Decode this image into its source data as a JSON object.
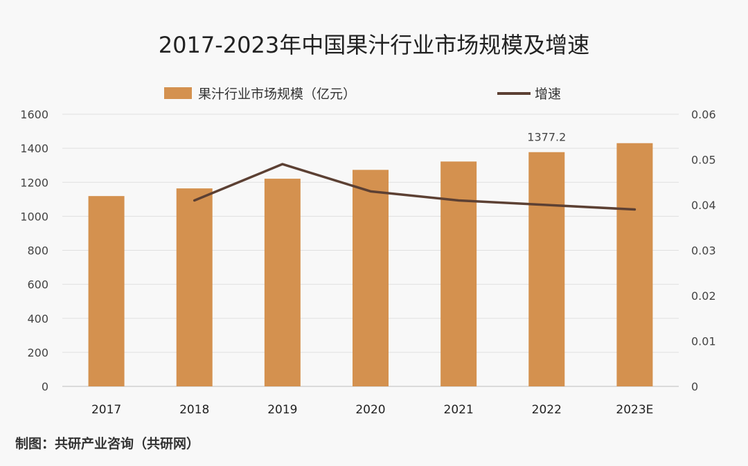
{
  "chart_data": {
    "type": "bar",
    "title": "2017-2023年中国果汁行业市场规模及增速",
    "categories": [
      "2017",
      "2018",
      "2019",
      "2020",
      "2021",
      "2022",
      "2023E"
    ],
    "series": [
      {
        "name": "果汁行业市场规模（亿元）",
        "type": "bar",
        "axis": "left",
        "color": "#d4914f",
        "values": [
          1119,
          1164,
          1221,
          1273,
          1322,
          1377.2,
          1430
        ]
      },
      {
        "name": "增速",
        "type": "line",
        "axis": "right",
        "color": "#5c4033",
        "values": [
          null,
          0.041,
          0.049,
          0.043,
          0.041,
          0.04,
          0.039
        ]
      }
    ],
    "y_left": {
      "min": 0,
      "max": 1600,
      "ticks": [
        "0",
        "200",
        "400",
        "600",
        "800",
        "1000",
        "1200",
        "1400",
        "1600"
      ]
    },
    "y_right": {
      "min": 0,
      "max": 0.06,
      "ticks": [
        "0",
        "0.01",
        "0.02",
        "0.03",
        "0.04",
        "0.05",
        "0.06"
      ]
    },
    "data_labels": [
      {
        "category": "2022",
        "text": "1377.2"
      }
    ],
    "grid": true,
    "legend": "top"
  },
  "footer": {
    "text": "制图：共研产业咨询（共研网）"
  }
}
